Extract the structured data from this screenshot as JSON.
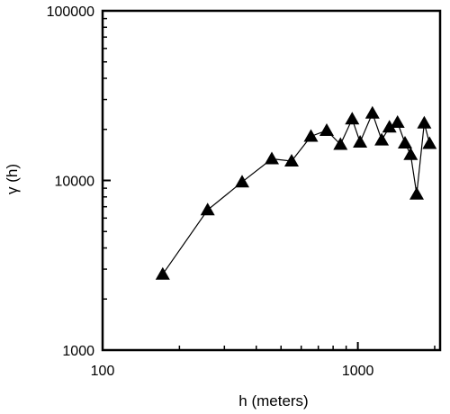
{
  "chart_data": {
    "type": "scatter",
    "xscale": "log",
    "yscale": "log",
    "xlim": [
      100,
      2100
    ],
    "ylim": [
      1000,
      100000
    ],
    "xlabel": "h (meters)",
    "ylabel": "γ (h)",
    "x_ticks": [
      {
        "value": 100,
        "label": "100"
      },
      {
        "value": 1000,
        "label": "1000"
      }
    ],
    "y_ticks": [
      {
        "value": 1000,
        "label": "1000"
      },
      {
        "value": 10000,
        "label": "10000"
      },
      {
        "value": 100000,
        "label": "100000"
      }
    ],
    "grid": false,
    "marker": "triangle",
    "connected": true,
    "color": "#000000",
    "series": [
      {
        "x": [
          172,
          258,
          352,
          460,
          550,
          655,
          755,
          855,
          950,
          1020,
          1140,
          1240,
          1330,
          1430,
          1530,
          1610,
          1700,
          1820,
          1910
        ],
        "y": [
          2800,
          6700,
          9800,
          13400,
          13000,
          18200,
          19700,
          16300,
          23000,
          16800,
          24900,
          17300,
          20600,
          22000,
          16600,
          14200,
          8300,
          21800,
          16500
        ]
      }
    ]
  }
}
